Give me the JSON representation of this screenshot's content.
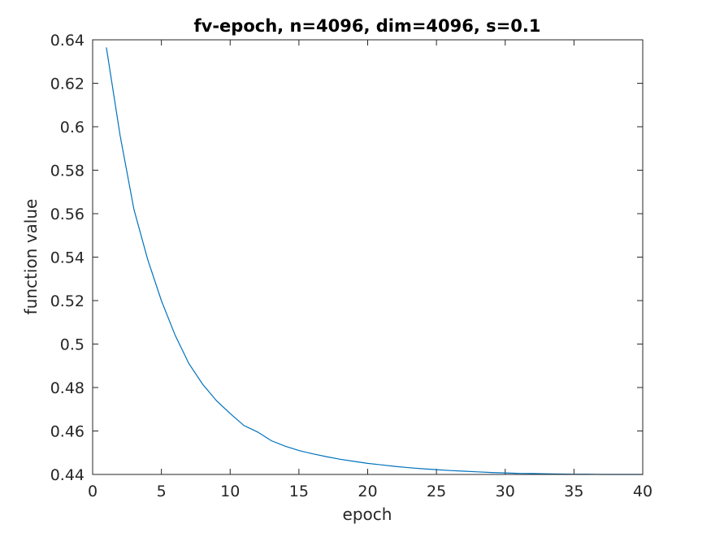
{
  "chart_data": {
    "type": "line",
    "title": "fv-epoch, n=4096, dim=4096, s=0.1",
    "xlabel": "epoch",
    "ylabel": "function value",
    "xlim": [
      0,
      40
    ],
    "ylim": [
      0.44,
      0.64
    ],
    "xticks": [
      0,
      5,
      10,
      15,
      20,
      25,
      30,
      35,
      40
    ],
    "xtick_labels": [
      "0",
      "5",
      "10",
      "15",
      "20",
      "25",
      "30",
      "35",
      "40"
    ],
    "yticks": [
      0.44,
      0.46,
      0.48,
      0.5,
      0.52,
      0.54,
      0.56,
      0.58,
      0.6,
      0.62,
      0.64
    ],
    "ytick_labels": [
      "0.44",
      "0.46",
      "0.48",
      "0.5",
      "0.52",
      "0.54",
      "0.56",
      "0.58",
      "0.6",
      "0.62",
      "0.64"
    ],
    "grid": false,
    "box": true,
    "line_color": "#0072BD",
    "series": [
      {
        "x": [
          1,
          2,
          3,
          4,
          5,
          6,
          7,
          8,
          9,
          10,
          11,
          12,
          13,
          14,
          15,
          16,
          17,
          18,
          19,
          20,
          21,
          22,
          23,
          24,
          25,
          26,
          27,
          28,
          29,
          30,
          31,
          32,
          33,
          34,
          35,
          36,
          37,
          38,
          39,
          40
        ],
        "values": [
          0.6365,
          0.596,
          0.562,
          0.539,
          0.52,
          0.504,
          0.491,
          0.4815,
          0.474,
          0.468,
          0.4625,
          0.4595,
          0.4555,
          0.453,
          0.451,
          0.4495,
          0.4482,
          0.447,
          0.446,
          0.4451,
          0.4444,
          0.4437,
          0.4431,
          0.4426,
          0.4422,
          0.4418,
          0.4415,
          0.4412,
          0.4409,
          0.4407,
          0.4405,
          0.4404,
          0.4403,
          0.4402,
          0.4401,
          0.4401,
          0.44,
          0.44,
          0.44,
          0.44
        ]
      }
    ]
  }
}
